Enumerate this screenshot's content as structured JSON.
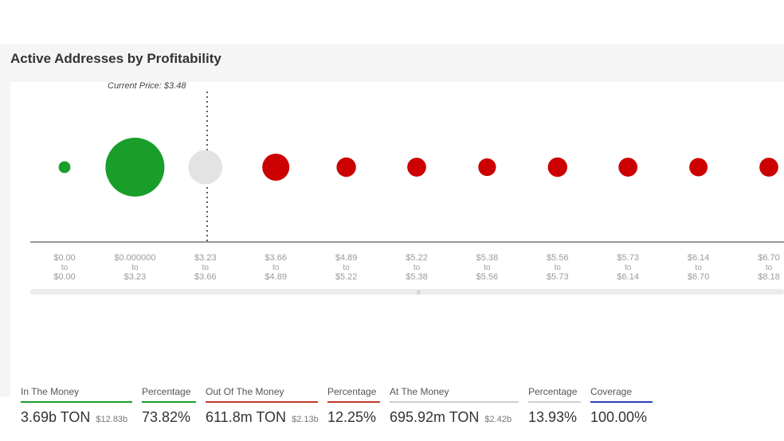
{
  "page": {
    "title": "Active Addresses by Profitability"
  },
  "chart_data": {
    "type": "scatter",
    "annotation": "Current Price: $3.48",
    "current_price": 3.48,
    "bins": [
      {
        "from": "$0.00",
        "to_word": "to",
        "to": "$0.00",
        "status": "in",
        "color": "#1a9e2a",
        "relative_size": 0.2
      },
      {
        "from": "$0.000000",
        "to_word": "to",
        "to": "$3.23",
        "status": "in",
        "color": "#1a9e2a",
        "relative_size": 1.0
      },
      {
        "from": "$3.23",
        "to_word": "to",
        "to": "$3.66",
        "status": "at",
        "color": "#e3e3e3",
        "relative_size": 0.58
      },
      {
        "from": "$3.66",
        "to_word": "to",
        "to": "$4.89",
        "status": "out",
        "color": "#cc0000",
        "relative_size": 0.46
      },
      {
        "from": "$4.89",
        "to_word": "to",
        "to": "$5.22",
        "status": "out",
        "color": "#cc0000",
        "relative_size": 0.33
      },
      {
        "from": "$5.22",
        "to_word": "to",
        "to": "$5.38",
        "status": "out",
        "color": "#cc0000",
        "relative_size": 0.32
      },
      {
        "from": "$5.38",
        "to_word": "to",
        "to": "$5.56",
        "status": "out",
        "color": "#cc0000",
        "relative_size": 0.3
      },
      {
        "from": "$5.56",
        "to_word": "to",
        "to": "$5.73",
        "status": "out",
        "color": "#cc0000",
        "relative_size": 0.33
      },
      {
        "from": "$5.73",
        "to_word": "to",
        "to": "$6.14",
        "status": "out",
        "color": "#cc0000",
        "relative_size": 0.32
      },
      {
        "from": "$6.14",
        "to_word": "to",
        "to": "$6.70",
        "status": "out",
        "color": "#cc0000",
        "relative_size": 0.31
      },
      {
        "from": "$6.70",
        "to_word": "to",
        "to": "$8.18",
        "status": "out",
        "color": "#cc0000",
        "relative_size": 0.32
      }
    ]
  },
  "stats": {
    "in_the_money": {
      "label": "In The Money",
      "value": "3.69b TON",
      "sub": "$12.83b",
      "color": "#1a9e2a"
    },
    "in_pct": {
      "label": "Percentage",
      "value": "73.82%",
      "color": "#1a9e2a"
    },
    "out_of_the_money": {
      "label": "Out Of The Money",
      "value": "611.8m TON",
      "sub": "$2.13b",
      "color": "#c0392b"
    },
    "out_pct": {
      "label": "Percentage",
      "value": "12.25%",
      "color": "#c0392b"
    },
    "at_the_money": {
      "label": "At The Money",
      "value": "695.92m TON",
      "sub": "$2.42b",
      "color": "#cfcfcf"
    },
    "at_pct": {
      "label": "Percentage",
      "value": "13.93%",
      "color": "#cfcfcf"
    },
    "coverage": {
      "label": "Coverage",
      "value": "100.00%",
      "color": "#2b3fb5"
    }
  }
}
